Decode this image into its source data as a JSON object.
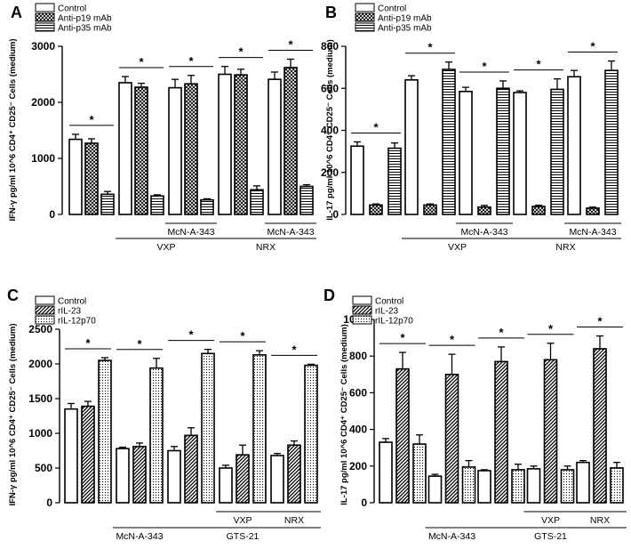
{
  "chart_data": [
    {
      "panel": "A",
      "type": "bar",
      "ylabel": "IFN-γ pg/ml 10^6 CD4⁺ CD25⁻ Cells (medium)",
      "ylim": [
        0,
        3000
      ],
      "yticks": [
        0,
        1000,
        2000,
        3000
      ],
      "legend": [
        "Control",
        "Anti-p19 mAb",
        "Anti-p35 mAb"
      ],
      "patterns": [
        "blank",
        "cross",
        "hline"
      ],
      "groups": [
        {
          "values": [
            1340,
            1270,
            360
          ],
          "errors": [
            90,
            80,
            50
          ]
        },
        {
          "values": [
            2350,
            2270,
            330
          ],
          "errors": [
            110,
            70,
            20
          ]
        },
        {
          "values": [
            2260,
            2330,
            260
          ],
          "errors": [
            150,
            150,
            20
          ]
        },
        {
          "values": [
            2500,
            2490,
            440
          ],
          "errors": [
            140,
            100,
            70
          ]
        },
        {
          "values": [
            2410,
            2620,
            500
          ],
          "errors": [
            130,
            150,
            30
          ]
        }
      ],
      "annotations": [
        {
          "text": "*",
          "group": 0
        },
        {
          "text": "*",
          "group": 1
        },
        {
          "text": "*",
          "group": 2
        },
        {
          "text": "*",
          "group": 3
        },
        {
          "text": "*",
          "group": 4
        }
      ],
      "treatment_labels": [
        {
          "text": "McN-A-343",
          "from": 2,
          "to": 2,
          "row": 1
        },
        {
          "text": "McN-A-343",
          "from": 4,
          "to": 4,
          "row": 1
        },
        {
          "text": "VXP",
          "from": 1,
          "to": 2,
          "row": 2
        },
        {
          "text": "NRX",
          "from": 3,
          "to": 4,
          "row": 2
        }
      ]
    },
    {
      "panel": "B",
      "type": "bar",
      "ylabel": "IL-17 pg/ml 10^6 CD4⁺ CD25⁻ Cells (medium)",
      "ylim": [
        0,
        800
      ],
      "yticks": [
        0,
        200,
        400,
        600,
        800
      ],
      "legend": [
        "Control",
        "Anti-p19 mAb",
        "Anti-p35 mAb"
      ],
      "patterns": [
        "blank",
        "cross",
        "hline"
      ],
      "groups": [
        {
          "values": [
            325,
            45,
            315
          ],
          "errors": [
            20,
            5,
            25
          ]
        },
        {
          "values": [
            640,
            45,
            690
          ],
          "errors": [
            20,
            5,
            35
          ]
        },
        {
          "values": [
            585,
            35,
            600
          ],
          "errors": [
            20,
            8,
            35
          ]
        },
        {
          "values": [
            580,
            38,
            595
          ],
          "errors": [
            8,
            6,
            50
          ]
        },
        {
          "values": [
            655,
            30,
            685
          ],
          "errors": [
            30,
            5,
            45
          ]
        }
      ],
      "annotations": [
        {
          "text": "*",
          "group": 0
        },
        {
          "text": "*",
          "group": 1
        },
        {
          "text": "*",
          "group": 2
        },
        {
          "text": "*",
          "group": 3
        },
        {
          "text": "*",
          "group": 4
        }
      ],
      "treatment_labels": [
        {
          "text": "McN-A-343",
          "from": 2,
          "to": 2,
          "row": 1
        },
        {
          "text": "McN-A-343",
          "from": 4,
          "to": 4,
          "row": 1
        },
        {
          "text": "VXP",
          "from": 1,
          "to": 2,
          "row": 2
        },
        {
          "text": "NRX",
          "from": 3,
          "to": 4,
          "row": 2
        }
      ]
    },
    {
      "panel": "C",
      "type": "bar",
      "ylabel": "IFN-γ pg/ml 10^6 CD4⁺ CD25⁻ Cells (medium)",
      "ylim": [
        0,
        2500
      ],
      "yticks": [
        0,
        500,
        1000,
        1500,
        2000,
        2500
      ],
      "legend": [
        "Control",
        "rIL-23",
        "rIL-12p70"
      ],
      "patterns": [
        "blank",
        "diag",
        "dots"
      ],
      "groups": [
        {
          "values": [
            1350,
            1390,
            2050
          ],
          "errors": [
            80,
            70,
            40
          ]
        },
        {
          "values": [
            780,
            810,
            1940
          ],
          "errors": [
            20,
            50,
            140
          ]
        },
        {
          "values": [
            750,
            970,
            2150
          ],
          "errors": [
            60,
            110,
            60
          ]
        },
        {
          "values": [
            500,
            690,
            2130
          ],
          "errors": [
            40,
            140,
            60
          ]
        },
        {
          "values": [
            680,
            830,
            1980
          ],
          "errors": [
            30,
            60,
            15
          ]
        }
      ],
      "annotations": [
        {
          "text": "*",
          "group": 0
        },
        {
          "text": "*",
          "group": 1
        },
        {
          "text": "*",
          "group": 2
        },
        {
          "text": "*",
          "group": 3
        },
        {
          "text": "*",
          "group": 4
        }
      ],
      "treatment_labels": [
        {
          "text": "McN-A-343",
          "from": 1,
          "to": 1,
          "row": 2
        },
        {
          "text": "GTS-21",
          "from": 2,
          "to": 4,
          "row": 2
        },
        {
          "text": "VXP",
          "from": 3,
          "to": 3,
          "row": 1
        },
        {
          "text": "NRX",
          "from": 4,
          "to": 4,
          "row": 1
        }
      ]
    },
    {
      "panel": "D",
      "type": "bar",
      "ylabel": "IL-17 pg/ml 10^6 CD4⁺ CD25⁻ Cells (medium)",
      "ylim": [
        0,
        1000
      ],
      "yticks": [
        0,
        200,
        400,
        600,
        800,
        1000
      ],
      "legend": [
        "Control",
        "rIL-23",
        "rIL-12p70"
      ],
      "patterns": [
        "blank",
        "diag",
        "dots"
      ],
      "groups": [
        {
          "values": [
            330,
            730,
            320
          ],
          "errors": [
            20,
            90,
            50
          ]
        },
        {
          "values": [
            145,
            700,
            195
          ],
          "errors": [
            10,
            110,
            35
          ]
        },
        {
          "values": [
            175,
            770,
            180
          ],
          "errors": [
            5,
            80,
            30
          ]
        },
        {
          "values": [
            185,
            780,
            180
          ],
          "errors": [
            15,
            90,
            20
          ]
        },
        {
          "values": [
            220,
            840,
            190
          ],
          "errors": [
            10,
            70,
            30
          ]
        }
      ],
      "annotations": [
        {
          "text": "*",
          "group": 0
        },
        {
          "text": "*",
          "group": 1
        },
        {
          "text": "*",
          "group": 2
        },
        {
          "text": "*",
          "group": 3
        },
        {
          "text": "*",
          "group": 4
        }
      ],
      "treatment_labels": [
        {
          "text": "McN-A-343",
          "from": 1,
          "to": 1,
          "row": 2
        },
        {
          "text": "GTS-21",
          "from": 2,
          "to": 4,
          "row": 2
        },
        {
          "text": "VXP",
          "from": 3,
          "to": 3,
          "row": 1
        },
        {
          "text": "NRX",
          "from": 4,
          "to": 4,
          "row": 1
        }
      ]
    }
  ]
}
